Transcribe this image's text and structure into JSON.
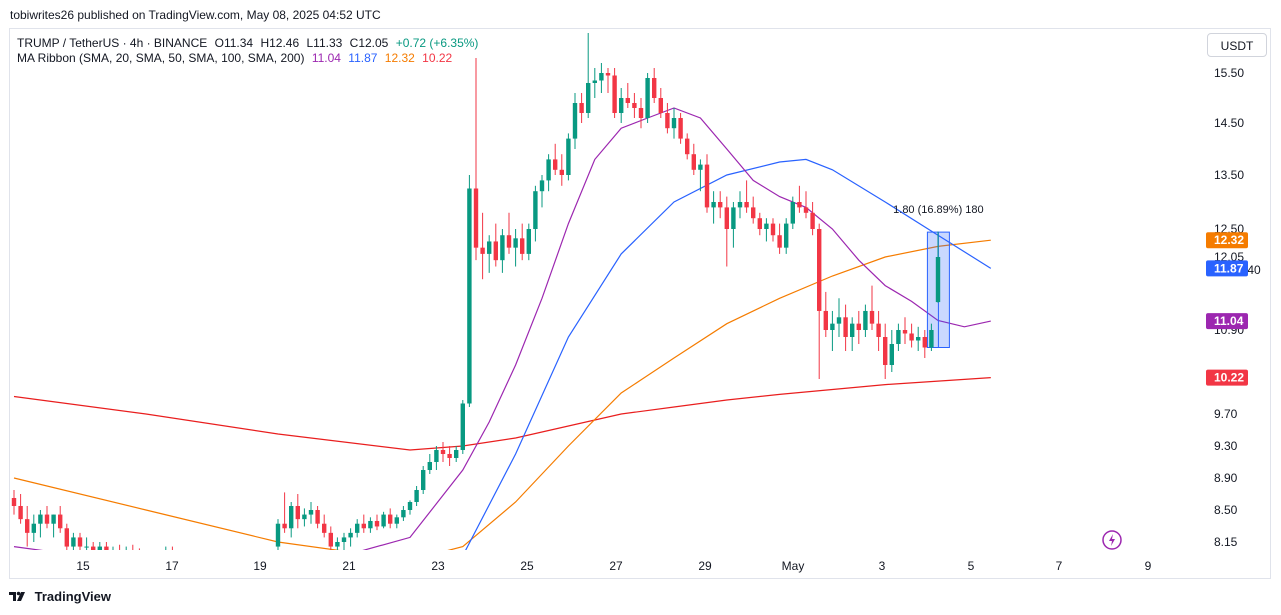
{
  "published": "tobiwrites26 published on TradingView.com, May 08, 2025 04:52 UTC",
  "legend": {
    "symbol": "TRUMP / TetherUS · 4h · BINANCE",
    "open": "O11.34",
    "high": "H12.46",
    "low": "L11.33",
    "close": "C12.05",
    "change": "+0.72 (+6.35%)",
    "ribbon_label": "MA Ribbon (SMA, 20, SMA, 50, SMA, 100, SMA, 200)",
    "ribbon_values": [
      "11.04",
      "11.87",
      "12.32",
      "10.22"
    ]
  },
  "currency_button": "USDT",
  "brand": "TradingView",
  "colors": {
    "up": "#089981",
    "down": "#f23645",
    "ma20": "#9c27b0",
    "ma50": "#2962ff",
    "ma100": "#f57c00",
    "ma200": "#e91e1e"
  },
  "icons": {
    "flash": "flash-icon",
    "logo": "tradingview-logo-icon"
  },
  "chart_data": {
    "type": "candlestick",
    "x_ticks": [
      "15",
      "17",
      "19",
      "21",
      "23",
      "25",
      "27",
      "29",
      "May",
      "3",
      "5",
      "7",
      "9"
    ],
    "y_ticks": [
      "15.50",
      "14.50",
      "13.50",
      "12.50",
      "12.05",
      "10.90",
      "9.70",
      "9.30",
      "8.90",
      "8.50",
      "8.15"
    ],
    "countdown": "03:07:40",
    "price_labels": [
      {
        "value": 12.32,
        "text": "12.32",
        "color": "#f57c00"
      },
      {
        "value": 11.87,
        "text": "11.87",
        "color": "#2962ff"
      },
      {
        "value": 11.04,
        "text": "11.04",
        "color": "#9c27b0"
      },
      {
        "value": 10.22,
        "text": "10.22",
        "color": "#f23645"
      }
    ],
    "last_price": {
      "value": 12.05,
      "text": "12.05"
    },
    "measure": {
      "label": "1.80 (16.89%) 180",
      "from": 10.65,
      "to": 12.45
    },
    "candles": [
      [
        8.65,
        8.75,
        8.45,
        8.55
      ],
      [
        8.55,
        8.7,
        8.35,
        8.4
      ],
      [
        8.4,
        8.55,
        8.1,
        8.25
      ],
      [
        8.25,
        8.45,
        8.15,
        8.35
      ],
      [
        8.35,
        8.5,
        8.2,
        8.45
      ],
      [
        8.45,
        8.55,
        8.3,
        8.35
      ],
      [
        8.35,
        8.45,
        8.2,
        8.45
      ],
      [
        8.45,
        8.55,
        8.25,
        8.3
      ],
      [
        8.3,
        8.35,
        8.05,
        8.1
      ],
      [
        8.1,
        8.25,
        8.0,
        8.2
      ],
      [
        8.2,
        8.25,
        8.05,
        8.1
      ],
      [
        8.1,
        8.2,
        8.0,
        8.1
      ],
      [
        8.1,
        8.15,
        8.0,
        8.05
      ],
      [
        8.05,
        8.15,
        8.0,
        8.1
      ],
      [
        8.1,
        8.15,
        7.95,
        8.0
      ],
      [
        8.0,
        8.1,
        7.9,
        8.05
      ],
      [
        8.05,
        8.12,
        7.95,
        8.0
      ],
      [
        8.0,
        8.1,
        7.9,
        8.05
      ],
      [
        8.05,
        8.12,
        7.95,
        8.0
      ],
      [
        8.0,
        8.08,
        7.9,
        7.95
      ],
      [
        7.95,
        8.05,
        7.85,
        8.0
      ],
      [
        8.0,
        8.05,
        7.9,
        7.95
      ],
      [
        7.95,
        8.05,
        7.85,
        8.0
      ],
      [
        8.0,
        8.1,
        7.9,
        8.05
      ],
      [
        8.05,
        8.1,
        7.95,
        8.0
      ],
      [
        8.0,
        8.05,
        7.88,
        7.95
      ],
      [
        7.95,
        8.0,
        7.85,
        7.9
      ],
      [
        7.9,
        8.0,
        7.82,
        7.95
      ],
      [
        7.95,
        8.02,
        7.85,
        7.9
      ],
      [
        7.9,
        7.98,
        7.8,
        7.92
      ],
      [
        7.92,
        8.0,
        7.85,
        7.88
      ],
      [
        7.88,
        7.95,
        7.8,
        7.9
      ],
      [
        7.9,
        7.98,
        7.82,
        7.85
      ],
      [
        7.85,
        7.95,
        7.78,
        7.9
      ],
      [
        7.9,
        7.95,
        7.8,
        7.85
      ],
      [
        7.85,
        7.9,
        7.75,
        7.8
      ],
      [
        7.8,
        7.9,
        7.72,
        7.85
      ],
      [
        7.85,
        7.92,
        7.75,
        7.8
      ],
      [
        7.8,
        7.88,
        7.7,
        7.82
      ],
      [
        7.82,
        7.9,
        7.72,
        7.78
      ],
      [
        8.1,
        8.4,
        8.05,
        8.35
      ],
      [
        8.35,
        8.72,
        8.25,
        8.3
      ],
      [
        8.3,
        8.6,
        8.2,
        8.55
      ],
      [
        8.55,
        8.7,
        8.3,
        8.4
      ],
      [
        8.4,
        8.52,
        8.32,
        8.45
      ],
      [
        8.45,
        8.6,
        8.35,
        8.5
      ],
      [
        8.5,
        8.55,
        8.3,
        8.35
      ],
      [
        8.35,
        8.45,
        8.2,
        8.25
      ],
      [
        8.25,
        8.32,
        8.05,
        8.1
      ],
      [
        8.1,
        8.2,
        8.0,
        8.15
      ],
      [
        8.15,
        8.25,
        8.05,
        8.2
      ],
      [
        8.2,
        8.3,
        8.1,
        8.25
      ],
      [
        8.25,
        8.4,
        8.2,
        8.35
      ],
      [
        8.35,
        8.45,
        8.25,
        8.3
      ],
      [
        8.3,
        8.42,
        8.25,
        8.38
      ],
      [
        8.38,
        8.45,
        8.28,
        8.32
      ],
      [
        8.32,
        8.48,
        8.3,
        8.45
      ],
      [
        8.45,
        8.52,
        8.3,
        8.35
      ],
      [
        8.35,
        8.45,
        8.3,
        8.42
      ],
      [
        8.42,
        8.55,
        8.38,
        8.5
      ],
      [
        8.5,
        8.62,
        8.45,
        8.6
      ],
      [
        8.6,
        8.8,
        8.55,
        8.75
      ],
      [
        8.75,
        9.05,
        8.7,
        9.0
      ],
      [
        9.0,
        9.2,
        8.95,
        9.1
      ],
      [
        9.1,
        9.3,
        9.0,
        9.25
      ],
      [
        9.25,
        9.35,
        9.1,
        9.2
      ],
      [
        9.2,
        9.3,
        9.05,
        9.15
      ],
      [
        9.15,
        9.3,
        9.1,
        9.25
      ],
      [
        9.25,
        9.9,
        9.2,
        9.85
      ],
      [
        9.85,
        13.5,
        9.8,
        13.25
      ],
      [
        13.25,
        15.8,
        12.0,
        12.2
      ],
      [
        12.2,
        12.8,
        11.7,
        12.1
      ],
      [
        12.1,
        12.4,
        11.8,
        12.3
      ],
      [
        12.3,
        12.6,
        11.9,
        12.0
      ],
      [
        12.0,
        12.5,
        11.8,
        12.4
      ],
      [
        12.4,
        12.8,
        12.1,
        12.2
      ],
      [
        12.2,
        12.5,
        11.9,
        12.35
      ],
      [
        12.35,
        12.6,
        12.0,
        12.1
      ],
      [
        12.1,
        12.6,
        12.0,
        12.5
      ],
      [
        12.5,
        13.3,
        12.3,
        13.2
      ],
      [
        13.2,
        13.5,
        12.9,
        13.4
      ],
      [
        13.4,
        13.9,
        13.2,
        13.8
      ],
      [
        13.8,
        14.1,
        13.5,
        13.6
      ],
      [
        13.6,
        13.9,
        13.3,
        13.5
      ],
      [
        13.5,
        14.3,
        13.4,
        14.2
      ],
      [
        14.2,
        15.1,
        14.0,
        14.9
      ],
      [
        14.9,
        15.1,
        14.5,
        14.7
      ],
      [
        14.7,
        16.3,
        14.6,
        15.3
      ],
      [
        15.3,
        15.6,
        15.0,
        15.35
      ],
      [
        15.35,
        15.7,
        15.1,
        15.5
      ],
      [
        15.5,
        15.6,
        15.1,
        15.45
      ],
      [
        15.45,
        15.6,
        14.6,
        14.7
      ],
      [
        14.7,
        15.2,
        14.5,
        15.0
      ],
      [
        15.0,
        15.3,
        14.8,
        14.9
      ],
      [
        14.9,
        15.1,
        14.6,
        14.8
      ],
      [
        14.8,
        15.0,
        14.4,
        14.6
      ],
      [
        14.6,
        15.5,
        14.5,
        15.4
      ],
      [
        15.4,
        15.6,
        14.9,
        15.0
      ],
      [
        15.0,
        15.2,
        14.6,
        14.7
      ],
      [
        14.7,
        14.9,
        14.3,
        14.4
      ],
      [
        14.4,
        14.8,
        14.2,
        14.6
      ],
      [
        14.6,
        14.7,
        14.1,
        14.2
      ],
      [
        14.2,
        14.3,
        13.8,
        13.9
      ],
      [
        13.9,
        14.1,
        13.5,
        13.6
      ],
      [
        13.6,
        13.8,
        13.2,
        13.7
      ],
      [
        13.7,
        13.9,
        12.8,
        12.9
      ],
      [
        12.9,
        13.2,
        12.6,
        13.0
      ],
      [
        13.0,
        13.2,
        12.7,
        12.9
      ],
      [
        12.9,
        13.1,
        11.9,
        12.5
      ],
      [
        12.5,
        13.0,
        12.2,
        12.9
      ],
      [
        12.9,
        13.2,
        12.7,
        13.0
      ],
      [
        13.0,
        13.4,
        12.8,
        12.9
      ],
      [
        12.9,
        13.1,
        12.6,
        12.7
      ],
      [
        12.7,
        12.8,
        12.4,
        12.5
      ],
      [
        12.5,
        12.7,
        12.3,
        12.6
      ],
      [
        12.6,
        12.7,
        12.3,
        12.4
      ],
      [
        12.4,
        12.6,
        12.1,
        12.2
      ],
      [
        12.2,
        12.7,
        12.1,
        12.6
      ],
      [
        12.6,
        13.1,
        12.5,
        13.0
      ],
      [
        13.0,
        13.3,
        12.8,
        12.9
      ],
      [
        12.9,
        13.2,
        12.7,
        12.8
      ],
      [
        12.8,
        13.0,
        12.4,
        12.5
      ],
      [
        12.5,
        12.6,
        10.2,
        11.2
      ],
      [
        11.2,
        11.5,
        10.8,
        10.9
      ],
      [
        10.9,
        11.2,
        10.6,
        11.0
      ],
      [
        11.0,
        11.4,
        10.8,
        11.1
      ],
      [
        11.1,
        11.3,
        10.6,
        10.8
      ],
      [
        10.8,
        11.1,
        10.6,
        11.0
      ],
      [
        11.0,
        11.2,
        10.7,
        10.9
      ],
      [
        10.9,
        11.3,
        10.8,
        11.2
      ],
      [
        11.2,
        11.6,
        10.9,
        11.0
      ],
      [
        11.0,
        11.2,
        10.6,
        10.8
      ],
      [
        10.8,
        11.0,
        10.2,
        10.4
      ],
      [
        10.4,
        10.9,
        10.3,
        10.7
      ],
      [
        10.7,
        11.0,
        10.6,
        10.9
      ],
      [
        10.9,
        11.1,
        10.7,
        10.85
      ],
      [
        10.85,
        11.0,
        10.65,
        10.75
      ],
      [
        10.75,
        10.95,
        10.6,
        10.8
      ],
      [
        10.8,
        10.9,
        10.5,
        10.65
      ],
      [
        10.65,
        11.0,
        10.6,
        10.9
      ],
      [
        11.34,
        12.46,
        11.33,
        12.05
      ]
    ],
    "ma20": [
      [
        0,
        8.1
      ],
      [
        10,
        8.0
      ],
      [
        20,
        7.85
      ],
      [
        30,
        7.8
      ],
      [
        40,
        7.85
      ],
      [
        50,
        8.0
      ],
      [
        60,
        8.2
      ],
      [
        68,
        9.0
      ],
      [
        72,
        9.6
      ],
      [
        76,
        10.4
      ],
      [
        80,
        11.4
      ],
      [
        84,
        12.6
      ],
      [
        88,
        13.8
      ],
      [
        92,
        14.4
      ],
      [
        96,
        14.6
      ],
      [
        100,
        14.8
      ],
      [
        104,
        14.6
      ],
      [
        108,
        14.0
      ],
      [
        112,
        13.4
      ],
      [
        116,
        13.1
      ],
      [
        120,
        12.9
      ],
      [
        124,
        12.5
      ],
      [
        128,
        12.0
      ],
      [
        132,
        11.6
      ],
      [
        136,
        11.35
      ],
      [
        140,
        11.05
      ],
      [
        144,
        10.95
      ],
      [
        148,
        11.04
      ]
    ],
    "ma50": [
      [
        0,
        7.8
      ],
      [
        20,
        7.7
      ],
      [
        40,
        7.65
      ],
      [
        60,
        7.7
      ],
      [
        68,
        8.0
      ],
      [
        76,
        9.2
      ],
      [
        84,
        10.8
      ],
      [
        92,
        12.1
      ],
      [
        100,
        13.0
      ],
      [
        108,
        13.5
      ],
      [
        116,
        13.75
      ],
      [
        120,
        13.8
      ],
      [
        124,
        13.6
      ],
      [
        132,
        13.0
      ],
      [
        140,
        12.4
      ],
      [
        148,
        11.87
      ]
    ],
    "ma100": [
      [
        0,
        8.9
      ],
      [
        20,
        8.5
      ],
      [
        40,
        8.15
      ],
      [
        60,
        7.95
      ],
      [
        68,
        8.1
      ],
      [
        76,
        8.6
      ],
      [
        84,
        9.3
      ],
      [
        92,
        10.0
      ],
      [
        100,
        10.5
      ],
      [
        108,
        11.0
      ],
      [
        116,
        11.4
      ],
      [
        124,
        11.75
      ],
      [
        132,
        12.05
      ],
      [
        140,
        12.22
      ],
      [
        148,
        12.32
      ]
    ],
    "ma200": [
      [
        0,
        9.95
      ],
      [
        20,
        9.7
      ],
      [
        40,
        9.45
      ],
      [
        60,
        9.25
      ],
      [
        68,
        9.3
      ],
      [
        76,
        9.4
      ],
      [
        84,
        9.55
      ],
      [
        92,
        9.7
      ],
      [
        100,
        9.8
      ],
      [
        108,
        9.9
      ],
      [
        116,
        9.98
      ],
      [
        124,
        10.05
      ],
      [
        132,
        10.12
      ],
      [
        140,
        10.17
      ],
      [
        148,
        10.22
      ]
    ]
  }
}
